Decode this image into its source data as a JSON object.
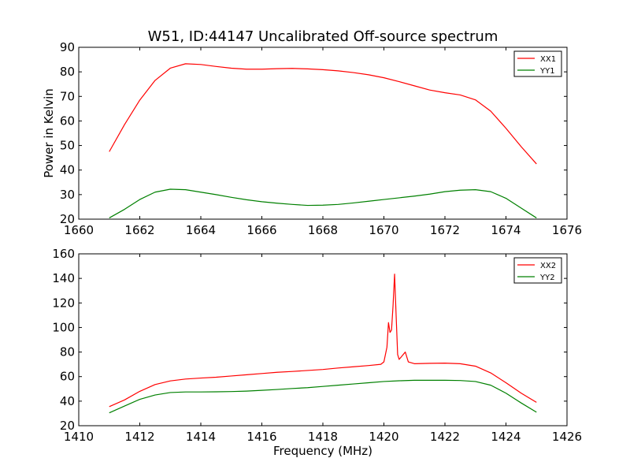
{
  "title": "W51, ID:44147 Uncalibrated Off-source spectrum",
  "chart_data": [
    {
      "type": "line",
      "ylabel": "Power in Kelvin",
      "xlabel": "",
      "xlim": [
        1660,
        1676
      ],
      "ylim": [
        20,
        90
      ],
      "xticks": [
        "1660",
        "1662",
        "1664",
        "1666",
        "1668",
        "1670",
        "1672",
        "1674",
        "1676"
      ],
      "yticks": [
        "20",
        "30",
        "40",
        "50",
        "60",
        "70",
        "80",
        "90"
      ],
      "legend_position": "top-right",
      "series": [
        {
          "name": "XX1",
          "color": "#ff0000",
          "x": [
            1661.0,
            1661.5,
            1662.0,
            1662.5,
            1663.0,
            1663.5,
            1664.0,
            1664.5,
            1665.0,
            1665.5,
            1666.0,
            1666.5,
            1667.0,
            1667.5,
            1668.0,
            1668.5,
            1669.0,
            1669.5,
            1670.0,
            1670.5,
            1671.0,
            1671.5,
            1672.0,
            1672.5,
            1673.0,
            1673.5,
            1674.0,
            1674.5,
            1675.0
          ],
          "y": [
            47.5,
            58.5,
            68.5,
            76.5,
            81.5,
            83.3,
            83.0,
            82.2,
            81.5,
            81.1,
            81.1,
            81.3,
            81.4,
            81.2,
            80.9,
            80.4,
            79.7,
            78.8,
            77.6,
            76.0,
            74.3,
            72.6,
            71.5,
            70.6,
            68.6,
            64.0,
            57.0,
            49.5,
            42.5
          ]
        },
        {
          "name": "YY1",
          "color": "#008000",
          "x": [
            1661.0,
            1661.5,
            1662.0,
            1662.5,
            1663.0,
            1663.5,
            1664.0,
            1664.5,
            1665.0,
            1665.5,
            1666.0,
            1666.5,
            1667.0,
            1667.5,
            1668.0,
            1668.5,
            1669.0,
            1669.5,
            1670.0,
            1670.5,
            1671.0,
            1671.5,
            1672.0,
            1672.5,
            1673.0,
            1673.5,
            1674.0,
            1674.5,
            1675.0
          ],
          "y": [
            20.5,
            24.0,
            28.0,
            31.0,
            32.2,
            32.0,
            31.0,
            30.0,
            28.9,
            27.9,
            27.1,
            26.5,
            26.0,
            25.6,
            25.7,
            26.0,
            26.6,
            27.3,
            28.0,
            28.7,
            29.4,
            30.2,
            31.2,
            31.8,
            32.0,
            31.2,
            28.5,
            24.5,
            20.5
          ]
        }
      ]
    },
    {
      "type": "line",
      "ylabel": "",
      "xlabel": "Frequency (MHz)",
      "xlim": [
        1410,
        1426
      ],
      "ylim": [
        20,
        160
      ],
      "xticks": [
        "1410",
        "1412",
        "1414",
        "1416",
        "1418",
        "1420",
        "1422",
        "1424",
        "1426"
      ],
      "yticks": [
        "20",
        "40",
        "60",
        "80",
        "100",
        "120",
        "140",
        "160"
      ],
      "legend_position": "top-right",
      "series": [
        {
          "name": "XX2",
          "color": "#ff0000",
          "x": [
            1411.0,
            1411.5,
            1412.0,
            1412.5,
            1413.0,
            1413.5,
            1414.0,
            1414.5,
            1415.0,
            1415.5,
            1416.0,
            1416.5,
            1417.0,
            1417.5,
            1418.0,
            1418.5,
            1419.0,
            1419.5,
            1419.9,
            1420.0,
            1420.1,
            1420.15,
            1420.2,
            1420.25,
            1420.3,
            1420.35,
            1420.4,
            1420.45,
            1420.5,
            1420.6,
            1420.7,
            1420.8,
            1421.0,
            1421.5,
            1422.0,
            1422.5,
            1423.0,
            1423.5,
            1424.0,
            1424.5,
            1425.0
          ],
          "y": [
            35.5,
            41.0,
            48.0,
            53.5,
            56.5,
            58.0,
            58.8,
            59.5,
            60.5,
            61.5,
            62.5,
            63.5,
            64.2,
            65.0,
            65.8,
            67.0,
            68.0,
            69.0,
            70.0,
            72.0,
            84.0,
            104.0,
            96.0,
            98.0,
            118.0,
            143.5,
            110.0,
            78.0,
            74.0,
            77.0,
            80.0,
            72.0,
            70.5,
            70.8,
            71.0,
            70.5,
            68.5,
            63.0,
            55.0,
            46.5,
            39.0
          ]
        },
        {
          "name": "YY2",
          "color": "#008000",
          "x": [
            1411.0,
            1411.5,
            1412.0,
            1412.5,
            1413.0,
            1413.5,
            1414.0,
            1414.5,
            1415.0,
            1415.5,
            1416.0,
            1416.5,
            1417.0,
            1417.5,
            1418.0,
            1418.5,
            1419.0,
            1419.5,
            1420.0,
            1420.5,
            1421.0,
            1421.5,
            1422.0,
            1422.5,
            1423.0,
            1423.5,
            1424.0,
            1424.5,
            1425.0
          ],
          "y": [
            30.5,
            36.0,
            41.5,
            45.0,
            47.0,
            47.5,
            47.5,
            47.6,
            47.8,
            48.2,
            48.8,
            49.5,
            50.3,
            51.0,
            52.0,
            53.0,
            54.0,
            55.0,
            56.0,
            56.6,
            57.0,
            57.0,
            57.0,
            56.8,
            56.0,
            53.0,
            46.5,
            38.5,
            31.0
          ]
        }
      ]
    }
  ]
}
